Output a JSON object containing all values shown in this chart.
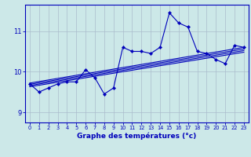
{
  "xlabel": "Graphe des températures (°c)",
  "background_color": "#cce8e8",
  "grid_color": "#aabccc",
  "line_color": "#0000bb",
  "xlim": [
    -0.5,
    23.5
  ],
  "ylim": [
    8.75,
    11.65
  ],
  "yticks": [
    9,
    10,
    11
  ],
  "xticks": [
    0,
    1,
    2,
    3,
    4,
    5,
    6,
    7,
    8,
    9,
    10,
    11,
    12,
    13,
    14,
    15,
    16,
    17,
    18,
    19,
    20,
    21,
    22,
    23
  ],
  "main_series": [
    9.7,
    9.5,
    9.6,
    9.7,
    9.75,
    9.75,
    10.05,
    9.85,
    9.45,
    9.6,
    10.6,
    10.5,
    10.5,
    10.45,
    10.6,
    11.45,
    11.2,
    11.1,
    10.5,
    10.45,
    10.3,
    10.2,
    10.65,
    10.6
  ],
  "regression_lines": [
    {
      "x": [
        0,
        23
      ],
      "y": [
        9.63,
        10.48
      ]
    },
    {
      "x": [
        0,
        23
      ],
      "y": [
        9.66,
        10.52
      ]
    },
    {
      "x": [
        0,
        23
      ],
      "y": [
        9.69,
        10.56
      ]
    },
    {
      "x": [
        0,
        23
      ],
      "y": [
        9.72,
        10.6
      ]
    }
  ],
  "ylabel_fontsize": 6.0,
  "xlabel_fontsize": 6.5,
  "xtick_fontsize": 4.8,
  "ytick_fontsize": 6.0,
  "linewidth": 0.8,
  "markersize": 2.2
}
